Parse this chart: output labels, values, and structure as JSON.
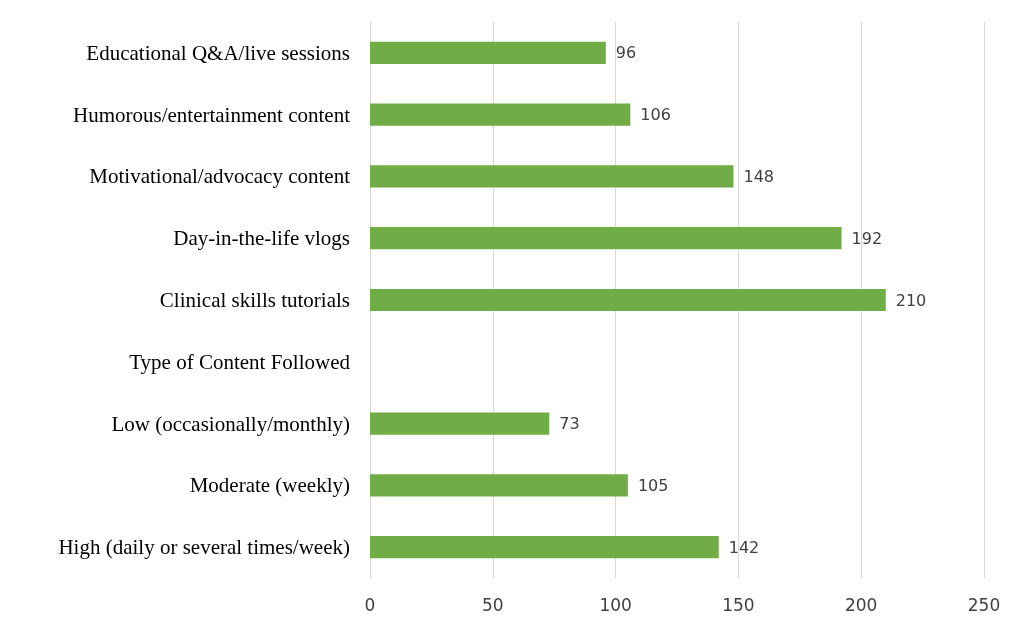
{
  "chart_data": {
    "type": "bar",
    "orientation": "horizontal",
    "categories": [
      "Educational Q&A/live sessions",
      "Humorous/entertainment content",
      "Motivational/advocacy content",
      "Day-in-the-life vlogs",
      "Clinical skills tutorials",
      "Type of Content Followed",
      "Low (occasionally/monthly)",
      "Moderate (weekly)",
      "High (daily or several times/week)"
    ],
    "values": [
      96,
      106,
      148,
      192,
      210,
      null,
      73,
      105,
      142
    ],
    "color": "#70ad47",
    "xlim": [
      0,
      250
    ],
    "xticks": [
      0,
      50,
      100,
      150,
      200,
      250
    ],
    "grid": "x",
    "data_labels": true
  }
}
